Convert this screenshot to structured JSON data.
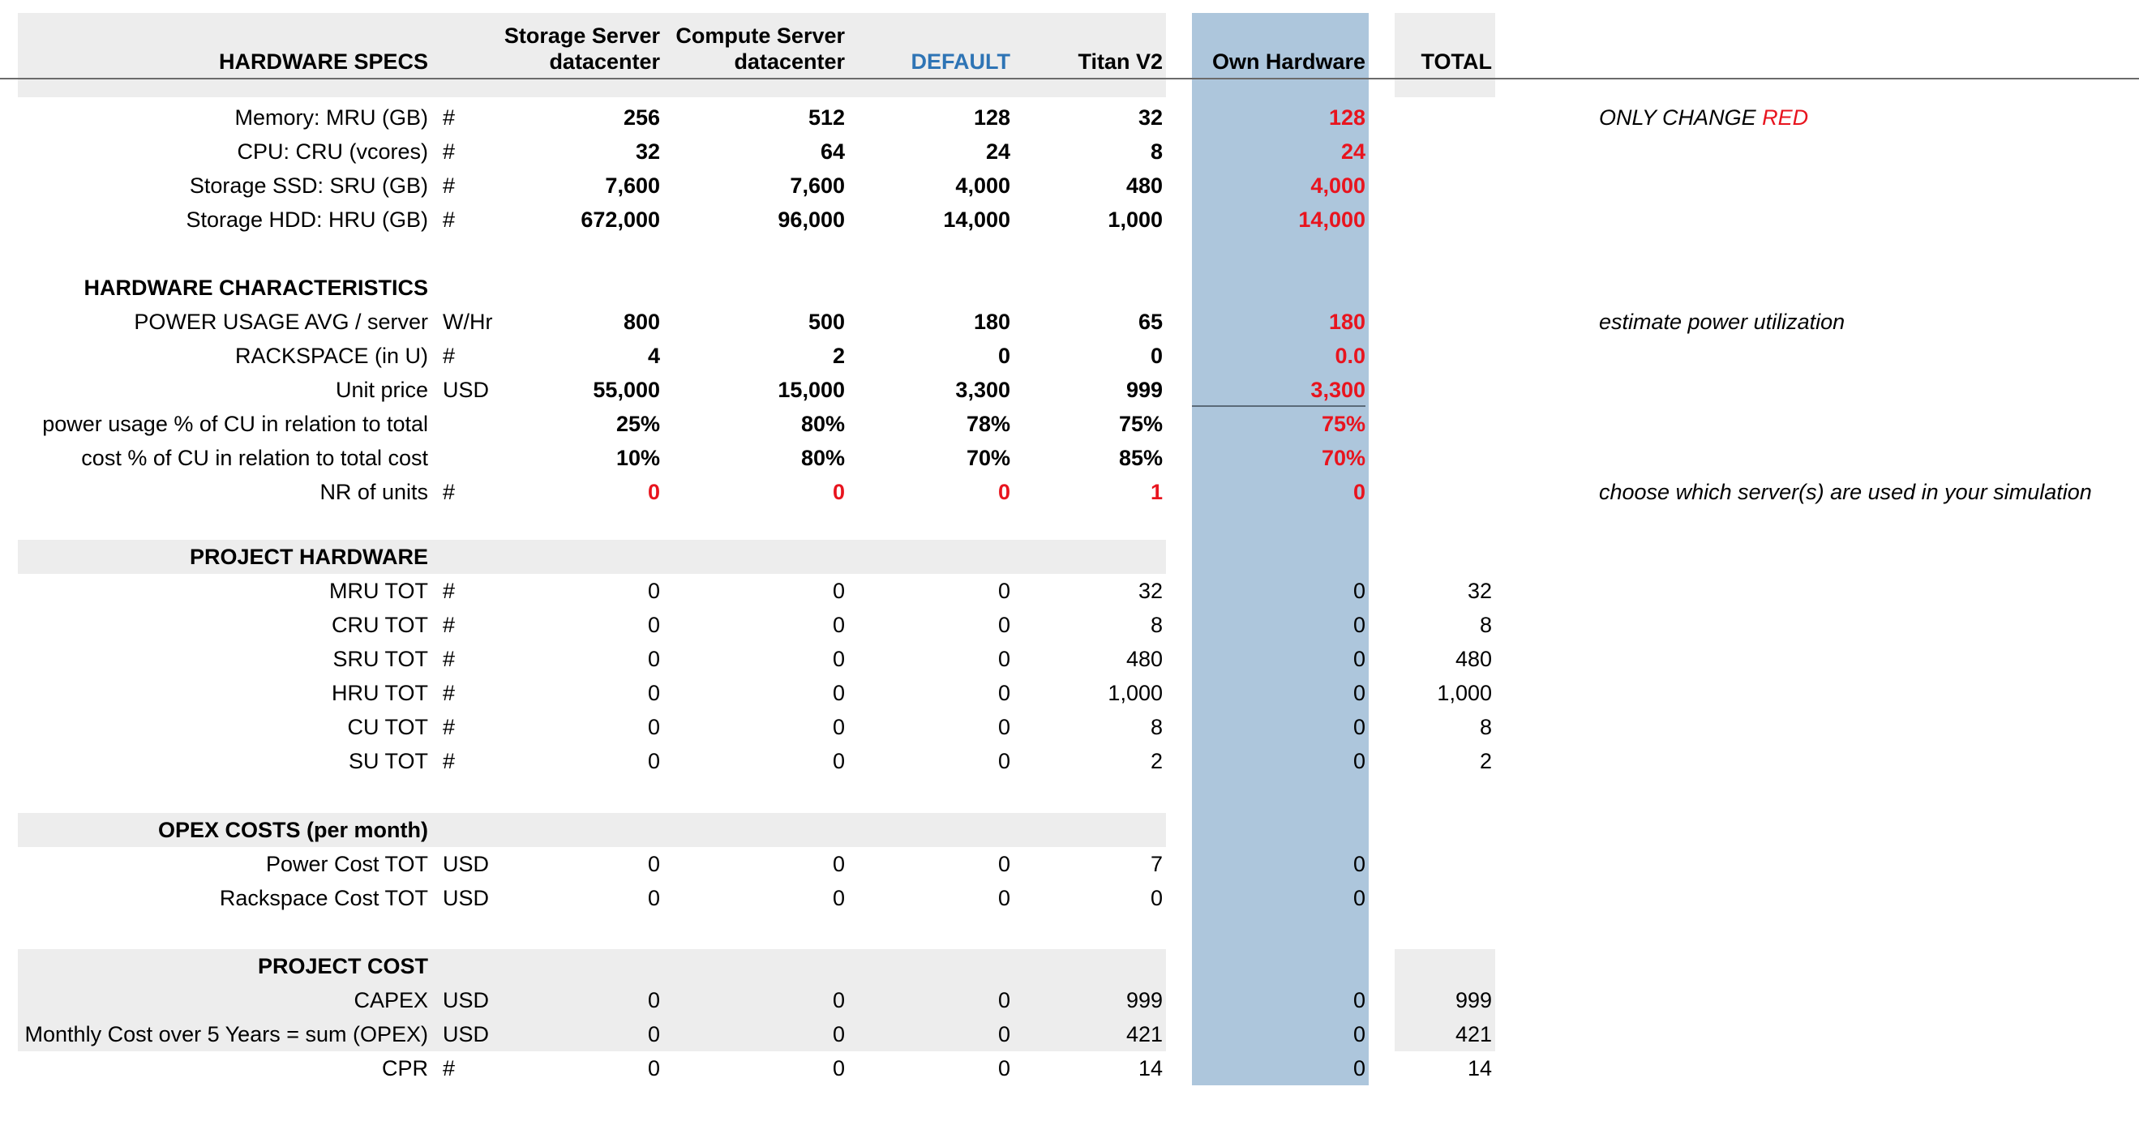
{
  "header": {
    "section_title": "HARDWARE SPECS",
    "columns": [
      {
        "line1": "Storage Server",
        "line2": "datacenter"
      },
      {
        "line1": "Compute Server",
        "line2": "datacenter"
      },
      {
        "line1": "",
        "line2": "DEFAULT"
      },
      {
        "line1": "",
        "line2": "Titan V2"
      },
      {
        "line1": "",
        "line2": "Own Hardware"
      }
    ],
    "total": "TOTAL"
  },
  "specs": [
    {
      "label": "Memory: MRU (GB)",
      "unit": "#",
      "values": [
        "256",
        "512",
        "128",
        "32",
        "128"
      ],
      "note": "ONLY CHANGE ",
      "note_red": "RED"
    },
    {
      "label": "CPU: CRU (vcores)",
      "unit": "#",
      "values": [
        "32",
        "64",
        "24",
        "8",
        "24"
      ]
    },
    {
      "label": "Storage SSD: SRU (GB)",
      "unit": "#",
      "values": [
        "7,600",
        "7,600",
        "4,000",
        "480",
        "4,000"
      ]
    },
    {
      "label": "Storage HDD: HRU (GB)",
      "unit": "#",
      "values": [
        "672,000",
        "96,000",
        "14,000",
        "1,000",
        "14,000"
      ]
    }
  ],
  "characteristics": {
    "title": "HARDWARE CHARACTERISTICS",
    "rows": [
      {
        "label": "POWER USAGE AVG / server",
        "unit": "W/Hr",
        "values": [
          "800",
          "500",
          "180",
          "65",
          "180"
        ],
        "note": "estimate power utilization"
      },
      {
        "label": "RACKSPACE (in U)",
        "unit": "#",
        "values": [
          "4",
          "2",
          "0",
          "0",
          "0.0"
        ]
      },
      {
        "label": "Unit price",
        "unit": "USD",
        "values": [
          "55,000",
          "15,000",
          "3,300",
          "999",
          "3,300"
        ]
      },
      {
        "label": "power usage % of CU in relation to total",
        "unit": "",
        "values": [
          "25%",
          "80%",
          "78%",
          "75%",
          "75%"
        ]
      },
      {
        "label": "cost % of CU in relation to total cost",
        "unit": "",
        "values": [
          "10%",
          "80%",
          "70%",
          "85%",
          "70%"
        ]
      },
      {
        "label": "NR of units",
        "unit": "#",
        "values": [
          "0",
          "0",
          "0",
          "1",
          "0"
        ],
        "note": "choose which server(s) are used in your simulation"
      }
    ]
  },
  "project_hardware": {
    "title": "PROJECT HARDWARE",
    "rows": [
      {
        "label": "MRU TOT",
        "unit": "#",
        "values": [
          "0",
          "0",
          "0",
          "32",
          "0"
        ],
        "total": "32"
      },
      {
        "label": "CRU TOT",
        "unit": "#",
        "values": [
          "0",
          "0",
          "0",
          "8",
          "0"
        ],
        "total": "8"
      },
      {
        "label": "SRU TOT",
        "unit": "#",
        "values": [
          "0",
          "0",
          "0",
          "480",
          "0"
        ],
        "total": "480"
      },
      {
        "label": "HRU TOT",
        "unit": "#",
        "values": [
          "0",
          "0",
          "0",
          "1,000",
          "0"
        ],
        "total": "1,000"
      },
      {
        "label": "CU TOT",
        "unit": "#",
        "values": [
          "0",
          "0",
          "0",
          "8",
          "0"
        ],
        "total": "8"
      },
      {
        "label": "SU TOT",
        "unit": "#",
        "values": [
          "0",
          "0",
          "0",
          "2",
          "0"
        ],
        "total": "2"
      }
    ]
  },
  "opex": {
    "title": "OPEX COSTS (per month)",
    "rows": [
      {
        "label": "Power Cost TOT",
        "unit": "USD",
        "values": [
          "0",
          "0",
          "0",
          "7",
          "0"
        ]
      },
      {
        "label": "Rackspace Cost TOT",
        "unit": "USD",
        "values": [
          "0",
          "0",
          "0",
          "0",
          "0"
        ]
      }
    ]
  },
  "project_cost": {
    "title": "PROJECT COST",
    "rows": [
      {
        "label": "CAPEX",
        "unit": "USD",
        "values": [
          "0",
          "0",
          "0",
          "999",
          "0"
        ],
        "total": "999"
      },
      {
        "label": "Monthly Cost over 5 Years = sum (OPEX)",
        "unit": "USD",
        "values": [
          "0",
          "0",
          "0",
          "421",
          "0"
        ],
        "total": "421"
      },
      {
        "label": "CPR",
        "unit": "#",
        "values": [
          "0",
          "0",
          "0",
          "14",
          "0"
        ],
        "total": "14"
      }
    ]
  },
  "colors": {
    "editable": "#e8141e",
    "default_header": "#2e74b5",
    "own_hardware_fill": "#adc6dc",
    "section_fill": "#ededed"
  }
}
